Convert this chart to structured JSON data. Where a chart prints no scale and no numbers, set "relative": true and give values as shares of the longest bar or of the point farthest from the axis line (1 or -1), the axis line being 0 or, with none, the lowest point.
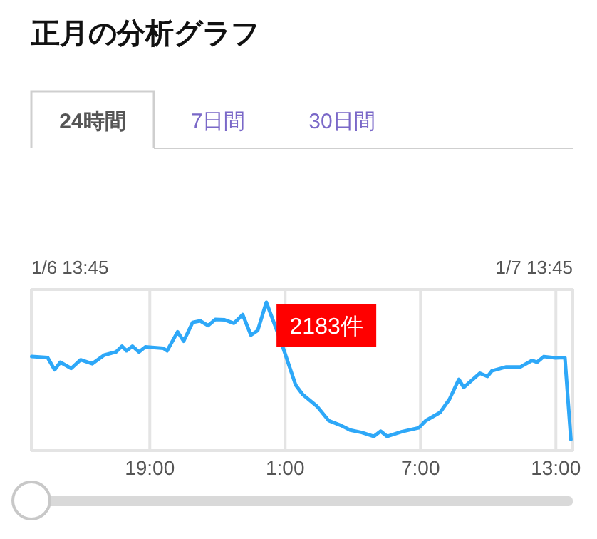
{
  "chart_data": {
    "type": "line",
    "title": "正月の分析グラフ",
    "annotations": [
      "24時間",
      "7日間",
      "30日間",
      "1/6 13:45",
      "1/7 13:45",
      {
        "text": "2183件",
        "x": "--01-07T00:56",
        "y": 0.682
      }
    ],
    "relative": true,
    "grid": "x",
    "marker": "none",
    "line_style": "solid",
    "xlim": [
      "--01-06T13:45",
      "--01-07T13:45"
    ],
    "xticks": [
      {
        "value": "--01-06T19:00",
        "label": "19:00"
      },
      {
        "value": "--01-07T01:00",
        "label": "1:00"
      },
      {
        "value": "--01-07T07:00",
        "label": "7:00"
      },
      {
        "value": "--01-07T13:00",
        "label": "13:00"
      }
    ],
    "series": [
      {
        "color": "#2ea8f8",
        "x": [
          "--01-06T13:46",
          "--01-06T14:28",
          "--01-06T14:47",
          "--01-06T15:02",
          "--01-06T15:31",
          "--01-06T15:56",
          "--01-06T16:27",
          "--01-06T16:59",
          "--01-06T17:30",
          "--01-06T17:46",
          "--01-06T17:58",
          "--01-06T18:14",
          "--01-06T18:31",
          "--01-06T18:48",
          "--01-06T19:36",
          "--01-06T19:46",
          "--01-06T20:14",
          "--01-06T20:30",
          "--01-06T20:54",
          "--01-06T21:14",
          "--01-06T21:35",
          "--01-06T21:54",
          "--01-06T22:19",
          "--01-06T22:44",
          "--01-06T23:07",
          "--01-06T23:29",
          "--01-06T23:47",
          "--01-07T00:10",
          "--01-07T00:38",
          "--01-07T00:56",
          "--01-07T01:28",
          "--01-07T01:47",
          "--01-07T02:25",
          "--01-07T02:56",
          "--01-07T03:28",
          "--01-07T03:53",
          "--01-07T04:24",
          "--01-07T04:56",
          "--01-07T05:14",
          "--01-07T05:31",
          "--01-07T06:11",
          "--01-07T06:55",
          "--01-07T07:14",
          "--01-07T07:52",
          "--01-07T08:17",
          "--01-07T08:42",
          "--01-07T08:55",
          "--01-07T09:38",
          "--01-07T09:58",
          "--01-07T10:10",
          "--01-07T10:48",
          "--01-07T11:26",
          "--01-07T11:57",
          "--01-07T12:10",
          "--01-07T12:28",
          "--01-07T12:59",
          "--01-07T13:24",
          "--01-07T13:40"
        ],
        "values": [
          0.634,
          0.628,
          0.545,
          0.596,
          0.554,
          0.612,
          0.586,
          0.644,
          0.665,
          0.704,
          0.673,
          0.704,
          0.665,
          0.699,
          0.69,
          0.673,
          0.801,
          0.738,
          0.865,
          0.875,
          0.843,
          0.884,
          0.882,
          0.859,
          0.917,
          0.779,
          0.81,
          1.0,
          0.81,
          0.682,
          0.442,
          0.378,
          0.298,
          0.202,
          0.17,
          0.138,
          0.122,
          0.096,
          0.131,
          0.096,
          0.128,
          0.153,
          0.202,
          0.257,
          0.346,
          0.48,
          0.426,
          0.522,
          0.5,
          0.538,
          0.564,
          0.564,
          0.608,
          0.596,
          0.634,
          0.625,
          0.628,
          0.074
        ]
      }
    ]
  }
}
